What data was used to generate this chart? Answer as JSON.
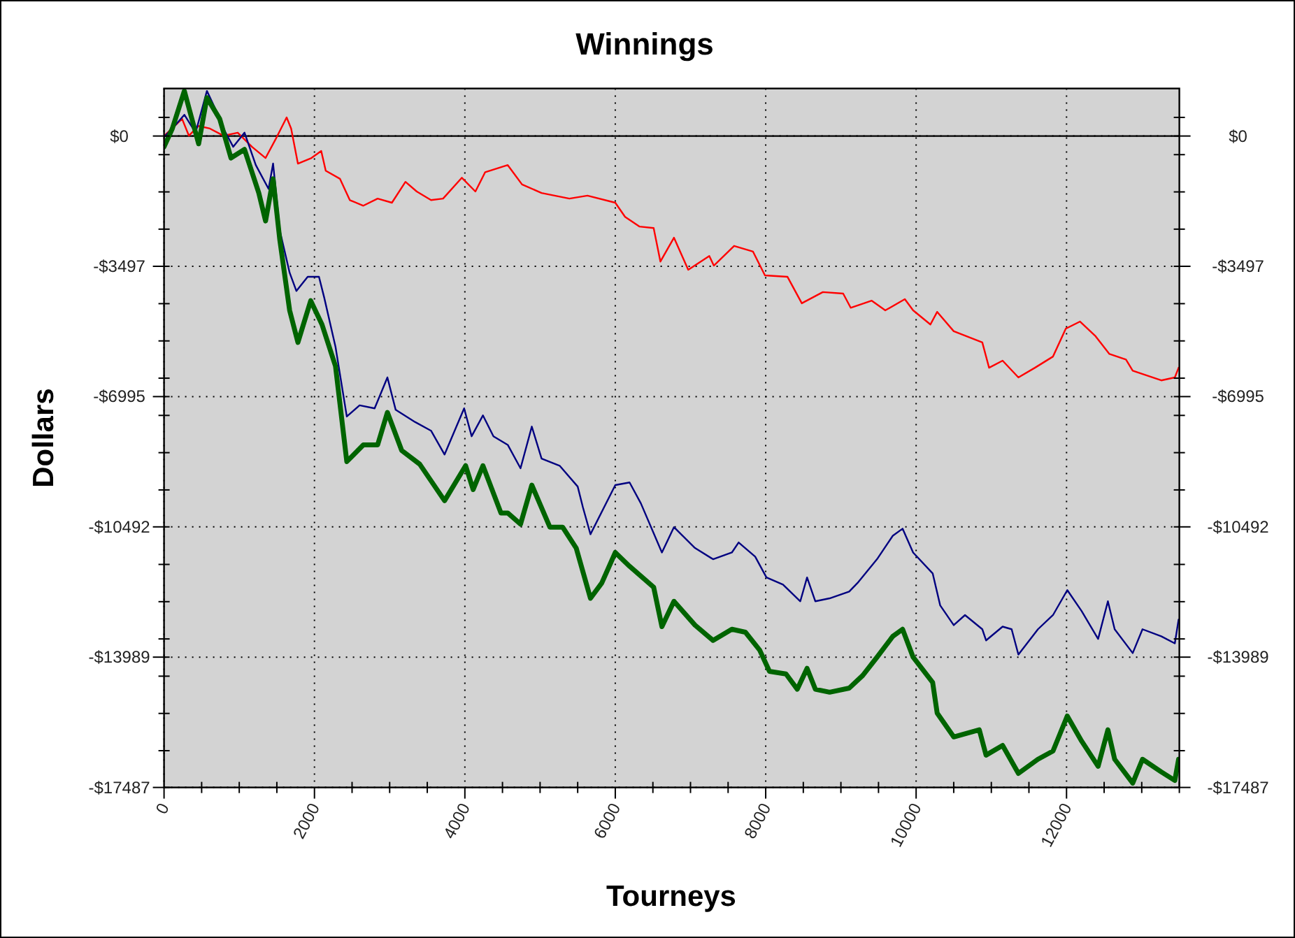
{
  "chart_data": {
    "type": "line",
    "title": "Winnings",
    "xlabel": "Tourneys",
    "ylabel": "Dollars",
    "xlim": [
      0,
      13500
    ],
    "xticks": [
      0,
      {
        "value": 500,
        "label": null
      },
      {
        "value": 1000,
        "label": null
      },
      {
        "value": 1500,
        "label": null
      },
      2000,
      {
        "value": 2500,
        "label": null
      },
      {
        "value": 3000,
        "label": null
      },
      {
        "value": 3500,
        "label": null
      },
      4000,
      {
        "value": 4500,
        "label": null
      },
      {
        "value": 5000,
        "label": null
      },
      {
        "value": 5500,
        "label": null
      },
      6000,
      {
        "value": 6500,
        "label": null
      },
      {
        "value": 7000,
        "label": null
      },
      {
        "value": 7500,
        "label": null
      },
      8000,
      {
        "value": 8500,
        "label": null
      },
      {
        "value": 9000,
        "label": null
      },
      {
        "value": 9500,
        "label": null
      },
      10000,
      {
        "value": 10500,
        "label": null
      },
      {
        "value": 11000,
        "label": null
      },
      {
        "value": 11500,
        "label": null
      },
      12000,
      {
        "value": 12500,
        "label": null
      },
      {
        "value": 13000,
        "label": null
      },
      {
        "value": 13500,
        "label": null
      }
    ],
    "ylim": [
      -17487,
      1276
    ],
    "yticks": [
      {
        "value": 0,
        "label": "$0"
      },
      {
        "value": -3497,
        "label": "-$3497"
      },
      {
        "value": -6995,
        "label": "-$6995"
      },
      {
        "value": -10492,
        "label": "-$10492"
      },
      {
        "value": -13989,
        "label": "-$13989"
      },
      {
        "value": -17487,
        "label": "-$17487"
      },
      {
        "value": 500,
        "label": null
      },
      {
        "value": -500,
        "label": null
      },
      {
        "value": -1500,
        "label": null
      },
      {
        "value": -2500,
        "label": null
      },
      {
        "value": -4500,
        "label": null
      },
      {
        "value": -5500,
        "label": null
      },
      {
        "value": -6500,
        "label": null
      },
      {
        "value": -7500,
        "label": null
      },
      {
        "value": -8500,
        "label": null
      },
      {
        "value": -9500,
        "label": null
      },
      {
        "value": -11500,
        "label": null
      },
      {
        "value": -12500,
        "label": null
      },
      {
        "value": -13500,
        "label": null
      },
      {
        "value": -14500,
        "label": null
      },
      {
        "value": -15500,
        "label": null
      },
      {
        "value": -16500,
        "label": null
      }
    ],
    "y2lim": [
      -17487,
      1276
    ],
    "y2ticks": [
      {
        "value": 0,
        "label": "$0"
      },
      {
        "value": -3497,
        "label": "-$3497"
      },
      {
        "value": -6995,
        "label": "-$6995"
      },
      {
        "value": -10492,
        "label": "-$10492"
      },
      {
        "value": -13989,
        "label": "-$13989"
      },
      {
        "value": -17487,
        "label": "-$17487"
      },
      {
        "value": 500,
        "label": null
      },
      {
        "value": -500,
        "label": null
      },
      {
        "value": -1500,
        "label": null
      },
      {
        "value": -2500,
        "label": null
      },
      {
        "value": -4500,
        "label": null
      },
      {
        "value": -5500,
        "label": null
      },
      {
        "value": -6500,
        "label": null
      },
      {
        "value": -7500,
        "label": null
      },
      {
        "value": -8500,
        "label": null
      },
      {
        "value": -9500,
        "label": null
      },
      {
        "value": -11500,
        "label": null
      },
      {
        "value": -12500,
        "label": null
      },
      {
        "value": -13500,
        "label": null
      },
      {
        "value": -14500,
        "label": null
      },
      {
        "value": -15500,
        "label": null
      },
      {
        "value": -16500,
        "label": null
      }
    ],
    "grid": true,
    "marker": "none",
    "line_style": "solid",
    "ref_lines": [
      {
        "axis": "y",
        "value": 0,
        "color": "#000000"
      }
    ],
    "series": [
      {
        "color": "#ff0000",
        "x": [
          0,
          240,
          330,
          460,
          610,
          790,
          980,
          1170,
          1350,
          1480,
          1630,
          1690,
          1780,
          1960,
          2090,
          2150,
          2340,
          2470,
          2650,
          2840,
          3030,
          3210,
          3360,
          3550,
          3710,
          3960,
          4140,
          4270,
          4570,
          4760,
          5020,
          5390,
          5630,
          6000,
          6130,
          6320,
          6510,
          6600,
          6780,
          6970,
          7250,
          7310,
          7580,
          7830,
          7990,
          8290,
          8480,
          8760,
          9030,
          9130,
          9410,
          9590,
          9850,
          9960,
          10190,
          10280,
          10500,
          10880,
          10970,
          11150,
          11360,
          11580,
          11820,
          11990,
          12180,
          12380,
          12570,
          12790,
          12880,
          13260,
          13440,
          13490
        ],
        "values": [
          0,
          460,
          10,
          270,
          200,
          10,
          90,
          -290,
          -590,
          -100,
          500,
          200,
          -740,
          -590,
          -400,
          -930,
          -1150,
          -1720,
          -1870,
          -1680,
          -1790,
          -1230,
          -1490,
          -1720,
          -1680,
          -1120,
          -1490,
          -970,
          -780,
          -1300,
          -1530,
          -1680,
          -1600,
          -1790,
          -2170,
          -2430,
          -2470,
          -3370,
          -2730,
          -3590,
          -3220,
          -3480,
          -2950,
          -3100,
          -3740,
          -3780,
          -4490,
          -4190,
          -4230,
          -4610,
          -4420,
          -4680,
          -4380,
          -4680,
          -5060,
          -4720,
          -5240,
          -5540,
          -6220,
          -6030,
          -6480,
          -6220,
          -5920,
          -5170,
          -4980,
          -5360,
          -5850,
          -6000,
          -6300,
          -6560,
          -6480,
          -6220
        ]
      },
      {
        "color": "#000080",
        "x": [
          0,
          110,
          270,
          420,
          570,
          700,
          790,
          920,
          1070,
          1220,
          1390,
          1450,
          1540,
          1670,
          1760,
          1910,
          2060,
          2130,
          2280,
          2430,
          2600,
          2800,
          2970,
          3080,
          3340,
          3550,
          3730,
          3990,
          4090,
          4240,
          4380,
          4570,
          4740,
          4890,
          5020,
          5260,
          5500,
          5570,
          5670,
          6000,
          6190,
          6340,
          6620,
          6780,
          7060,
          7300,
          7550,
          7640,
          7860,
          8010,
          8230,
          8460,
          8550,
          8660,
          8850,
          9110,
          9220,
          9480,
          9690,
          9820,
          9960,
          10220,
          10320,
          10500,
          10650,
          10880,
          10930,
          11150,
          11270,
          11360,
          11620,
          11820,
          12010,
          12200,
          12420,
          12550,
          12640,
          12880,
          13010,
          13260,
          13440,
          13490
        ],
        "values": [
          -30,
          200,
          570,
          90,
          1210,
          650,
          200,
          -290,
          90,
          -780,
          -1420,
          -740,
          -2540,
          -3670,
          -4160,
          -3780,
          -3780,
          -4340,
          -5660,
          -7530,
          -7230,
          -7310,
          -6480,
          -7350,
          -7680,
          -7910,
          -8550,
          -7310,
          -8060,
          -7500,
          -8060,
          -8290,
          -8920,
          -7800,
          -8660,
          -8850,
          -9410,
          -9970,
          -10690,
          -9370,
          -9300,
          -9860,
          -11180,
          -10500,
          -11060,
          -11360,
          -11180,
          -10910,
          -11290,
          -11850,
          -12040,
          -12490,
          -11850,
          -12490,
          -12410,
          -12230,
          -12000,
          -11360,
          -10730,
          -10540,
          -11180,
          -11740,
          -12600,
          -13130,
          -12860,
          -13240,
          -13540,
          -13170,
          -13240,
          -13920,
          -13240,
          -12860,
          -12190,
          -12750,
          -13500,
          -12490,
          -13240,
          -13880,
          -13240,
          -13430,
          -13620,
          -12980
        ]
      },
      {
        "color": "#006400",
        "x": [
          0,
          110,
          270,
          460,
          570,
          740,
          890,
          1070,
          1260,
          1350,
          1450,
          1540,
          1670,
          1780,
          1950,
          2100,
          2280,
          2430,
          2650,
          2840,
          2970,
          3160,
          3400,
          3730,
          4010,
          4110,
          4240,
          4480,
          4570,
          4740,
          4890,
          5130,
          5300,
          5480,
          5670,
          5820,
          6000,
          6190,
          6510,
          6620,
          6780,
          7060,
          7300,
          7550,
          7730,
          7920,
          8050,
          8270,
          8420,
          8550,
          8660,
          8850,
          9110,
          9290,
          9480,
          9690,
          9820,
          9960,
          10220,
          10280,
          10500,
          10840,
          10930,
          11150,
          11360,
          11620,
          11820,
          12010,
          12200,
          12420,
          12550,
          12640,
          12880,
          13010,
          13260,
          13440,
          13490
        ],
        "values": [
          -290,
          200,
          1210,
          -210,
          1030,
          460,
          -590,
          -360,
          -1530,
          -2280,
          -1150,
          -2800,
          -4680,
          -5540,
          -4420,
          -5060,
          -6180,
          -8740,
          -8290,
          -8290,
          -7420,
          -8440,
          -8810,
          -9790,
          -8850,
          -9490,
          -8850,
          -10120,
          -10120,
          -10420,
          -9370,
          -10500,
          -10500,
          -11060,
          -12410,
          -12000,
          -11180,
          -11550,
          -12110,
          -13170,
          -12490,
          -13130,
          -13540,
          -13240,
          -13320,
          -13800,
          -14370,
          -14440,
          -14850,
          -14290,
          -14850,
          -14930,
          -14820,
          -14480,
          -13990,
          -13430,
          -13240,
          -13990,
          -14670,
          -15490,
          -16130,
          -15940,
          -16620,
          -16360,
          -17110,
          -16730,
          -16510,
          -15570,
          -16240,
          -16920,
          -15940,
          -16730,
          -17370,
          -16730,
          -17070,
          -17300,
          -16730
        ]
      }
    ]
  }
}
